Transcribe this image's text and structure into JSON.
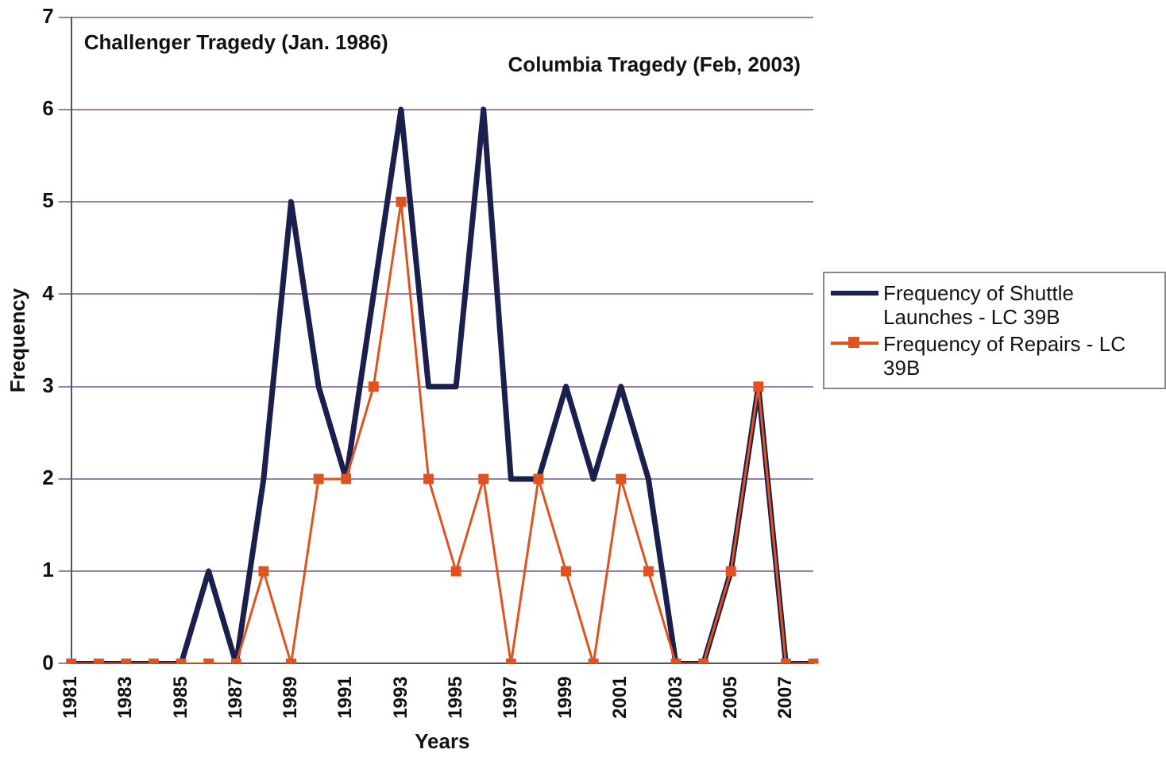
{
  "chart_data": {
    "type": "line",
    "xlabel": "Years",
    "ylabel": "Frequency",
    "categories": [
      "1981",
      null,
      "1983",
      null,
      "1985",
      null,
      "1987",
      null,
      "1989",
      null,
      "1991",
      null,
      "1993",
      null,
      "1995",
      null,
      "1997",
      null,
      "1999",
      null,
      "2001",
      null,
      "2003",
      null,
      "2005",
      null,
      "2007",
      null
    ],
    "series": [
      {
        "name": "Frequency of Shuttle Launches - LC 39B",
        "color": "#1a1f4e",
        "marker": "none",
        "values": [
          0,
          0,
          0,
          0,
          0,
          1,
          0,
          2,
          5,
          3,
          2,
          4,
          6,
          3,
          3,
          6,
          2,
          2,
          3,
          2,
          3,
          2,
          0,
          0,
          1,
          3,
          0,
          0
        ]
      },
      {
        "name": "Frequency of Repairs - LC 39B",
        "color": "#e0521f",
        "marker": "square",
        "values": [
          0,
          0,
          0,
          0,
          0,
          0,
          0,
          1,
          0,
          2,
          2,
          3,
          5,
          2,
          1,
          2,
          0,
          2,
          1,
          0,
          2,
          1,
          0,
          0,
          1,
          3,
          0,
          0
        ]
      }
    ],
    "ylim": [
      0,
      7
    ],
    "yticks": [
      0,
      1,
      2,
      3,
      4,
      5,
      6,
      7
    ],
    "grid": "y",
    "legend": "right",
    "annotations": [
      "Challenger Tragedy (Jan. 1986)",
      "Columbia Tragedy (Feb, 2003)"
    ]
  }
}
